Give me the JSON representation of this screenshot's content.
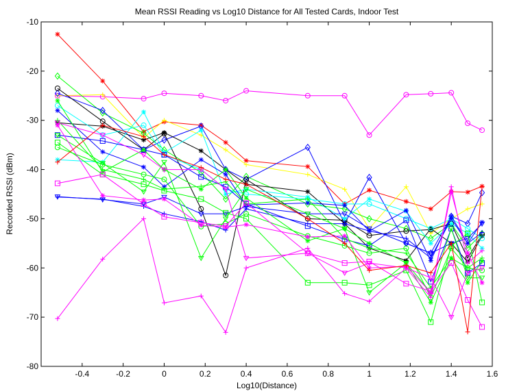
{
  "chart_data": {
    "type": "line",
    "title": "Mean RSSI Reading vs Log10 Distance for All Tested Cards, Indoor Test",
    "xlabel": "Log10(Distance)",
    "ylabel": "Recorded RSSI (dBm)",
    "xlim": [
      -0.6,
      1.6
    ],
    "ylim": [
      -80,
      -10
    ],
    "xticks": [
      "-0.4",
      "-0.2",
      "0",
      "0.2",
      "0.4",
      "0.6",
      "0.8",
      "1",
      "1.2",
      "1.4",
      "1.6"
    ],
    "yticks": [
      "-10",
      "-20",
      "-30",
      "-40",
      "-50",
      "-60",
      "-70",
      "-80"
    ],
    "grid": false,
    "legend": "none",
    "x": [
      -0.52,
      -0.3,
      -0.1,
      0,
      0.18,
      0.3,
      0.4,
      0.7,
      0.88,
      1.0,
      1.18,
      1.3,
      1.4,
      1.48,
      1.55
    ],
    "series": [
      {
        "color": "#ff00ff",
        "marker": "o",
        "values": [
          -25,
          -25.2,
          -25.6,
          -24.5,
          -25,
          -26,
          -24,
          -25,
          -25,
          -33,
          -24.8,
          -24.6,
          -24.4,
          -30.6,
          -32
        ]
      },
      {
        "color": "#ff0000",
        "marker": "*",
        "values": [
          -12.5,
          -22,
          -32.3,
          -30.3,
          -31,
          -34.5,
          -38.2,
          -39.4,
          -47,
          -44.2,
          -46.5,
          -48,
          -44.5,
          -44.6,
          -43.4
        ]
      },
      {
        "color": "#ffff00",
        "marker": "+",
        "values": [
          -25,
          -24.8,
          -33.5,
          -30,
          -33,
          -36,
          -39,
          -41,
          -44,
          -52,
          -43.5,
          -53,
          -50,
          -48,
          -47
        ]
      },
      {
        "color": "#00ff00",
        "marker": "d",
        "values": [
          -21,
          -28.5,
          -32.6,
          -36,
          -40.6,
          -46,
          -41.4,
          -47,
          -48,
          -50,
          -52,
          -54,
          -51,
          -56,
          -53
        ]
      },
      {
        "color": "#0000ff",
        "marker": "d",
        "values": [
          -24.5,
          -28,
          -36,
          -34,
          -31.2,
          -40,
          -42,
          -35.5,
          -51,
          -41.6,
          -55,
          -57,
          -49.5,
          -51,
          -44.7
        ]
      },
      {
        "color": "#000000",
        "marker": "o",
        "values": [
          -23.5,
          -30.2,
          -36,
          -32.7,
          -48,
          -61.5,
          -42,
          -50,
          -50.3,
          -53.4,
          -52.5,
          -52.2,
          -51,
          -58,
          -53.2
        ]
      },
      {
        "color": "#000000",
        "marker": "*",
        "values": [
          -30.5,
          -31.2,
          -34,
          -32.5,
          -36.2,
          -40,
          -43,
          -44.5,
          -51,
          -56,
          -58.5,
          -52,
          -55,
          -58.8,
          -53.5
        ]
      },
      {
        "color": "#00ffff",
        "marker": "o",
        "values": [
          -27,
          -33,
          -31,
          -37,
          -40,
          -44,
          -45,
          -46,
          -47,
          -47,
          -50,
          -52,
          -50,
          -52,
          -54
        ]
      },
      {
        "color": "#00ffff",
        "marker": "*",
        "values": [
          -38,
          -38.5,
          -28.3,
          -36.6,
          -32,
          -45,
          -44,
          -45.6,
          -50,
          -46,
          -48.5,
          -55,
          -51,
          -53,
          -56
        ]
      },
      {
        "color": "#0000ff",
        "marker": "s",
        "values": [
          -33,
          -34.2,
          -36,
          -37,
          -41.5,
          -43.5,
          -47,
          -51.5,
          -54.2,
          -55.5,
          -50.3,
          -62.8,
          -52,
          -61,
          -59
        ]
      },
      {
        "color": "#0000ff",
        "marker": "*",
        "values": [
          -28,
          -36.4,
          -39.5,
          -43.5,
          -38,
          -41,
          -47.2,
          -46.8,
          -47.3,
          -52.5,
          -48.3,
          -58.5,
          -49.5,
          -55,
          -50.7
        ]
      },
      {
        "color": "#0000ff",
        "marker": "v",
        "values": [
          -45.5,
          -46.1,
          -47,
          -45.6,
          -49,
          -49,
          -47.5,
          -49,
          -49,
          -52,
          -55,
          -57,
          -55,
          -54,
          -51
        ]
      },
      {
        "color": "#0000ff",
        "marker": "+",
        "values": [
          -45.6,
          -46,
          -47.5,
          -49,
          -50.6,
          -52.3,
          -48,
          -51,
          -51,
          -52.5,
          -54,
          -58,
          -50,
          -55,
          -52.8
        ]
      },
      {
        "color": "#00ff00",
        "marker": "*",
        "values": [
          -26,
          -40.5,
          -36,
          -40,
          -44,
          -40,
          -45.8,
          -54.5,
          -52,
          -55,
          -59,
          -67,
          -58,
          -63,
          -58.6
        ]
      },
      {
        "color": "#00ff00",
        "marker": "+",
        "values": [
          -30,
          -40,
          -42,
          -44,
          -43.4,
          -42.5,
          -47,
          -46,
          -54,
          -56,
          -57,
          -64,
          -58,
          -60,
          -58
        ]
      },
      {
        "color": "#00ff00",
        "marker": "s",
        "values": [
          -34.5,
          -41,
          -43,
          -44.3,
          -46,
          -48.8,
          -50,
          -63,
          -63,
          -63.5,
          -60.5,
          -71,
          -55.5,
          -53,
          -67
        ]
      },
      {
        "color": "#00ff00",
        "marker": "v",
        "values": [
          -33,
          -38.7,
          -44.5,
          -38.5,
          -58,
          -50,
          -44,
          -49,
          -52,
          -65,
          -59,
          -65,
          -52,
          -62,
          -62
        ]
      },
      {
        "color": "#00ff00",
        "marker": "o",
        "values": [
          -35.5,
          -39,
          -41,
          -42,
          -51.6,
          -51,
          -49,
          -53.5,
          -55.5,
          -57,
          -56,
          -66,
          -56,
          -60,
          -60.5
        ]
      },
      {
        "color": "#ff00ff",
        "marker": "s",
        "values": [
          -42.8,
          -41,
          -47,
          -49.6,
          -50.8,
          -51.5,
          -46.8,
          -57,
          -59,
          -58.7,
          -63.2,
          -64.7,
          -59,
          -66.5,
          -72
        ]
      },
      {
        "color": "#ff00ff",
        "marker": "+",
        "values": [
          -70.3,
          -58.2,
          -50,
          -67.1,
          -65.7,
          -73.1,
          -60,
          -56,
          -65.2,
          -66.8,
          -60,
          -66,
          -43.5,
          -59,
          -56.5
        ]
      },
      {
        "color": "#ff00ff",
        "marker": "*",
        "values": [
          -31,
          -45.3,
          -46.2,
          -46,
          -51.3,
          -51.7,
          -51.2,
          -53.7,
          -53.5,
          -60,
          -59.7,
          -65,
          -44.6,
          -57,
          -63
        ]
      },
      {
        "color": "#ff00ff",
        "marker": "v",
        "values": [
          -30.5,
          -33,
          -37,
          -40,
          -40,
          -44,
          -58,
          -57,
          -61,
          -59,
          -60,
          -62,
          -70,
          -61,
          -60
        ]
      },
      {
        "color": "#ff0000",
        "marker": "+",
        "values": [
          -38.5,
          -31,
          -33.3,
          -37,
          -39.6,
          -42,
          -43,
          -50,
          -55,
          -60.5,
          -59.5,
          -61,
          -55,
          -73,
          -43.5
        ]
      }
    ]
  }
}
